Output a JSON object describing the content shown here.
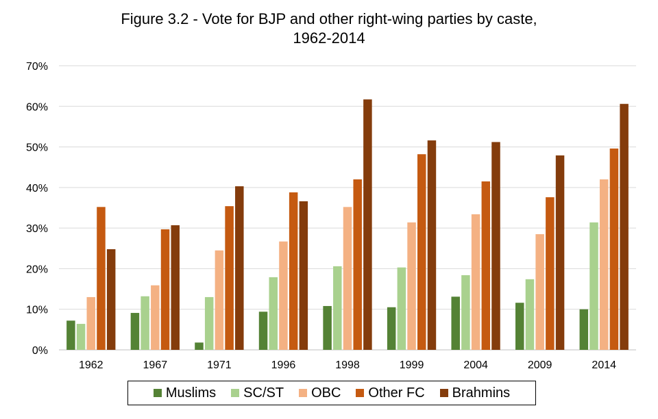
{
  "chart_data": {
    "type": "bar",
    "title": "Figure 3.2 - Vote for BJP and other right-wing parties by caste,",
    "subtitle": "1962-2014",
    "xlabel": "",
    "ylabel": "",
    "ylim": [
      0,
      70
    ],
    "yticks": [
      "0%",
      "10%",
      "20%",
      "30%",
      "40%",
      "50%",
      "60%",
      "70%"
    ],
    "grid": true,
    "legend_position": "bottom",
    "categories": [
      "1962",
      "1967",
      "1971",
      "1996",
      "1998",
      "1999",
      "2004",
      "2009",
      "2014"
    ],
    "series": [
      {
        "name": "Muslims",
        "color": "#548235",
        "values": [
          7.2,
          9.1,
          1.8,
          9.4,
          10.8,
          10.5,
          13.1,
          11.6,
          10.0
        ]
      },
      {
        "name": "SC/ST",
        "color": "#a9d18e",
        "values": [
          6.4,
          13.2,
          13.0,
          17.9,
          20.6,
          20.3,
          18.4,
          17.4,
          31.4
        ]
      },
      {
        "name": "OBC",
        "color": "#f4b183",
        "values": [
          13.0,
          15.9,
          24.5,
          26.7,
          35.2,
          31.4,
          33.4,
          28.5,
          42.0
        ]
      },
      {
        "name": "Other FC",
        "color": "#c55a11",
        "values": [
          35.2,
          29.7,
          35.4,
          38.8,
          42.0,
          48.2,
          41.5,
          37.6,
          49.6
        ]
      },
      {
        "name": "Brahmins",
        "color": "#843c0c",
        "values": [
          24.8,
          30.7,
          40.3,
          36.6,
          61.7,
          51.6,
          51.2,
          47.9,
          60.6
        ]
      }
    ]
  }
}
